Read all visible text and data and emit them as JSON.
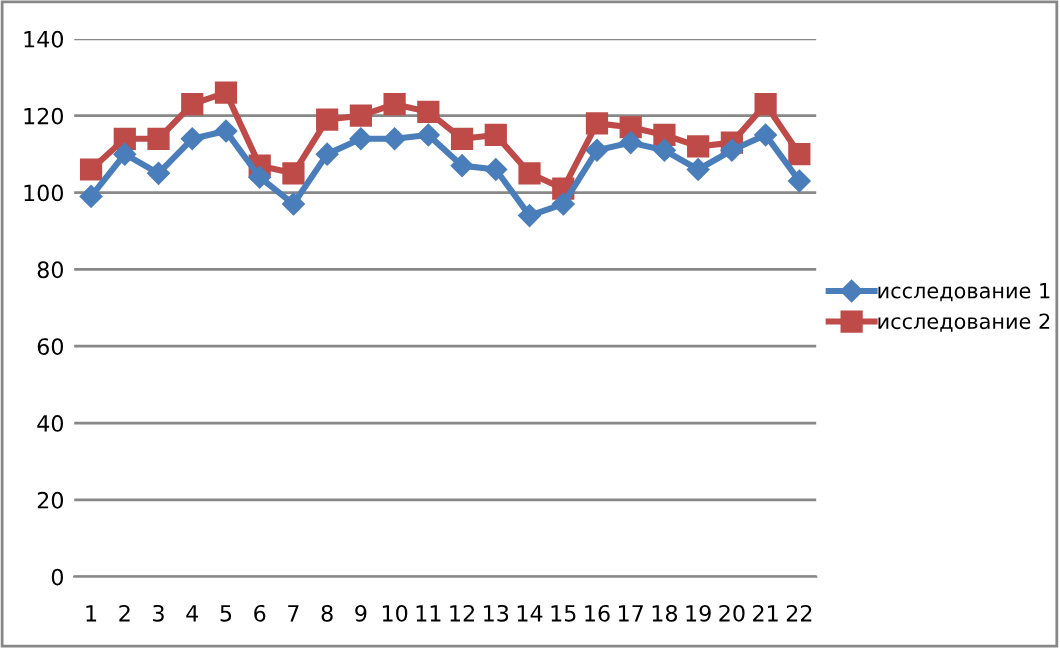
{
  "chart_data": {
    "type": "line",
    "categories": [
      "1",
      "2",
      "3",
      "4",
      "5",
      "6",
      "7",
      "8",
      "9",
      "10",
      "11",
      "12",
      "13",
      "14",
      "15",
      "16",
      "17",
      "18",
      "19",
      "20",
      "21",
      "22"
    ],
    "series": [
      {
        "name": "исследование 1",
        "color": "#4a7ebb",
        "marker": "diamond",
        "values": [
          99,
          110,
          105,
          114,
          116,
          104,
          97,
          110,
          114,
          114,
          115,
          107,
          106,
          94,
          97,
          111,
          113,
          111,
          106,
          111,
          115,
          103
        ]
      },
      {
        "name": "исследование 2",
        "color": "#be4b48",
        "marker": "square",
        "values": [
          106,
          114,
          114,
          123,
          126,
          107,
          105,
          119,
          120,
          123,
          121,
          114,
          115,
          105,
          101,
          118,
          117,
          115,
          112,
          113,
          123,
          110
        ]
      }
    ],
    "ylim": [
      0,
      140
    ],
    "yticks": [
      0,
      20,
      40,
      60,
      80,
      100,
      120,
      140
    ],
    "grid": "y",
    "legend": "right"
  }
}
